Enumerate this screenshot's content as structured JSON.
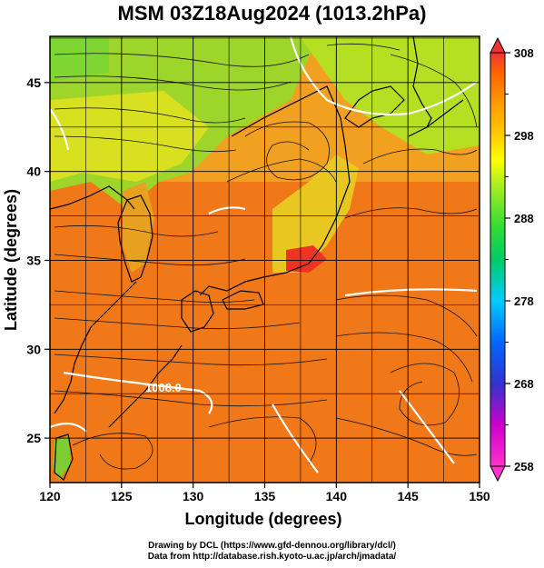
{
  "title": "MSM 03Z18Aug2024 (1013.2hPa)",
  "map": {
    "x_axis": {
      "label": "Longitude (degrees)",
      "range": [
        120,
        150
      ],
      "ticks": [
        "120",
        "125",
        "130",
        "135",
        "140",
        "145",
        "150"
      ]
    },
    "y_axis": {
      "label": "Latitude  (degrees)",
      "range": [
        22.5,
        47.6
      ],
      "ticks": [
        "25",
        "30",
        "35",
        "40",
        "45"
      ]
    },
    "contour_label": "1008.0",
    "grid": true
  },
  "colorbar": {
    "ticks": [
      "258",
      "268",
      "278",
      "288",
      "298",
      "308"
    ],
    "range": [
      258,
      308
    ],
    "colors": [
      "#ff33cc",
      "#cc00cc",
      "#3333cc",
      "#0066ff",
      "#00ccff",
      "#00cc66",
      "#33dd33",
      "#aaee22",
      "#ffff00",
      "#ffcc00",
      "#ff9900",
      "#ff6600",
      "#ee3333"
    ]
  },
  "credits": {
    "line1": "Drawing by DCL (https://www.gfd-dennou.org/library/dcl/)",
    "line2": "Data from http://database.rish.kyoto-u.ac.jp/arch/jmadata/"
  }
}
